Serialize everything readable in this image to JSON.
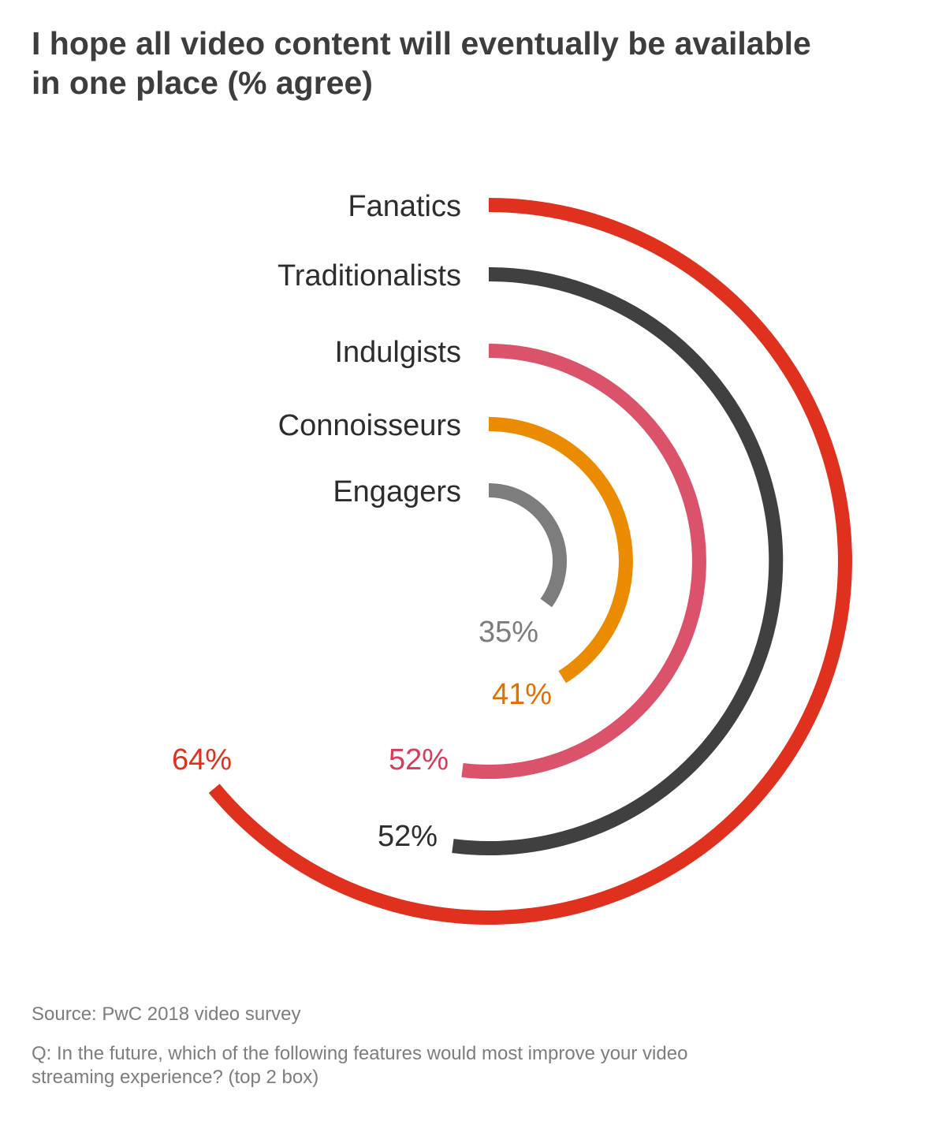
{
  "chart_data": {
    "type": "radial-bar",
    "title": "I hope all video content will eventually be available in one place (% agree)",
    "unit": "%",
    "max": 100,
    "categories": [
      "Fanatics",
      "Traditionalists",
      "Indulgists",
      "Connoisseurs",
      "Engagers"
    ],
    "values": [
      64,
      52,
      52,
      41,
      35
    ],
    "value_labels": [
      "64%",
      "52%",
      "52%",
      "41%",
      "35%"
    ],
    "colors": [
      "#e0301e",
      "#404041",
      "#db536a",
      "#eb8c00",
      "#7d7d7d"
    ],
    "label_colors": [
      "#e0301e",
      "#2d2d2d",
      "#db3a5a",
      "#e07000",
      "#7d7d7d"
    ]
  },
  "source": "Source: PwC 2018 video survey",
  "question": "Q: In the future, which of the following features would most improve your video streaming experience? (top 2 box)"
}
